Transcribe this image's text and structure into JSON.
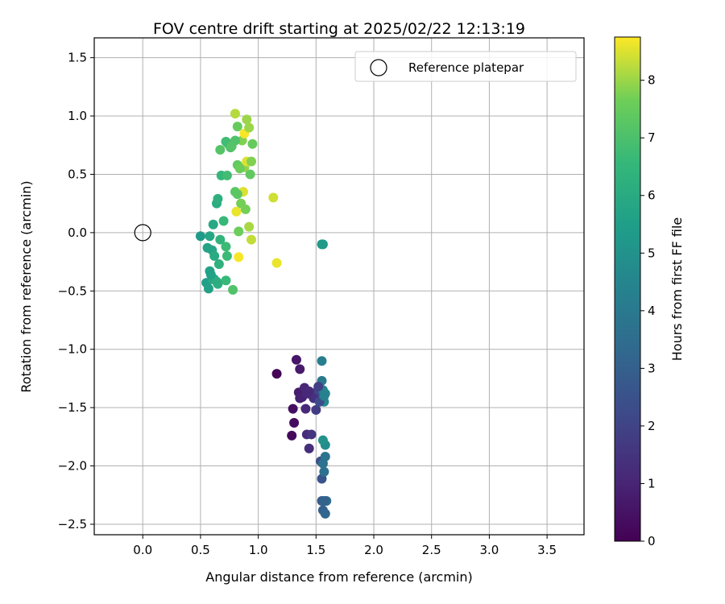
{
  "chart_data": {
    "type": "scatter",
    "title": "FOV centre drift starting at 2025/02/22 12:13:19",
    "xlabel": "Angular distance from reference (arcmin)",
    "ylabel": "Rotation from reference (arcmin)",
    "xlim": [
      -0.42,
      3.82
    ],
    "ylim": [
      -2.59,
      1.67
    ],
    "xticks": [
      "0.0",
      "0.5",
      "1.0",
      "1.5",
      "2.0",
      "2.5",
      "3.0",
      "3.5"
    ],
    "xtick_values": [
      0.0,
      0.5,
      1.0,
      1.5,
      2.0,
      2.5,
      3.0,
      3.5
    ],
    "yticks": [
      "1.5",
      "1.0",
      "0.5",
      "0.0",
      "−0.5",
      "−1.0",
      "−1.5",
      "−2.0",
      "−2.5"
    ],
    "ytick_values": [
      1.5,
      1.0,
      0.5,
      0.0,
      -0.5,
      -1.0,
      -1.5,
      -2.0,
      -2.5
    ],
    "grid": true,
    "legend": {
      "position": "top-right",
      "entries": [
        "Reference platepar"
      ]
    },
    "reference": {
      "x": 0.0,
      "y": 0.0,
      "label": "Reference platepar"
    },
    "colorbar": {
      "label": "Hours from first FF file",
      "colormap": "viridis",
      "range": [
        0,
        8.75
      ],
      "ticks": [
        "0",
        "1",
        "2",
        "3",
        "4",
        "5",
        "6",
        "7",
        "8"
      ],
      "tick_values": [
        0,
        1,
        2,
        3,
        4,
        5,
        6,
        7,
        8
      ]
    },
    "points": [
      {
        "x": 1.16,
        "y": -1.21,
        "h": 0.1
      },
      {
        "x": 1.29,
        "y": -1.74,
        "h": 0.2
      },
      {
        "x": 1.31,
        "y": -1.63,
        "h": 0.3
      },
      {
        "x": 1.3,
        "y": -1.51,
        "h": 0.4
      },
      {
        "x": 1.33,
        "y": -1.09,
        "h": 0.6
      },
      {
        "x": 1.36,
        "y": -1.17,
        "h": 0.7
      },
      {
        "x": 1.35,
        "y": -1.37,
        "h": 0.8
      },
      {
        "x": 1.38,
        "y": -1.41,
        "h": 0.9
      },
      {
        "x": 1.4,
        "y": -1.33,
        "h": 1.0
      },
      {
        "x": 1.41,
        "y": -1.51,
        "h": 1.1
      },
      {
        "x": 1.42,
        "y": -1.73,
        "h": 1.2
      },
      {
        "x": 1.44,
        "y": -1.85,
        "h": 1.3
      },
      {
        "x": 1.46,
        "y": -1.73,
        "h": 1.5
      },
      {
        "x": 1.47,
        "y": -1.4,
        "h": 1.6
      },
      {
        "x": 1.49,
        "y": -1.38,
        "h": 1.7
      },
      {
        "x": 1.5,
        "y": -1.52,
        "h": 1.8
      },
      {
        "x": 1.51,
        "y": -1.36,
        "h": 2.0
      },
      {
        "x": 1.53,
        "y": -1.4,
        "h": 2.2
      },
      {
        "x": 1.54,
        "y": -1.96,
        "h": 2.4
      },
      {
        "x": 1.55,
        "y": -2.11,
        "h": 2.6
      },
      {
        "x": 1.55,
        "y": -2.3,
        "h": 2.8
      },
      {
        "x": 1.56,
        "y": -2.38,
        "h": 3.0
      },
      {
        "x": 1.58,
        "y": -2.41,
        "h": 3.2
      },
      {
        "x": 1.59,
        "y": -2.3,
        "h": 3.4
      },
      {
        "x": 1.57,
        "y": -2.05,
        "h": 3.6
      },
      {
        "x": 1.58,
        "y": -1.92,
        "h": 3.8
      },
      {
        "x": 1.55,
        "y": -1.27,
        "h": 4.0
      },
      {
        "x": 1.55,
        "y": -1.1,
        "h": 4.2
      },
      {
        "x": 1.56,
        "y": -1.35,
        "h": 4.4
      },
      {
        "x": 1.57,
        "y": -1.45,
        "h": 4.6
      },
      {
        "x": 1.58,
        "y": -1.82,
        "h": 4.8
      },
      {
        "x": 1.56,
        "y": -1.78,
        "h": 5.0
      },
      {
        "x": 1.56,
        "y": -0.1,
        "h": 5.2
      },
      {
        "x": 0.5,
        "y": -0.03,
        "h": 5.4
      },
      {
        "x": 0.55,
        "y": -0.43,
        "h": 5.5
      },
      {
        "x": 0.57,
        "y": -0.48,
        "h": 5.6
      },
      {
        "x": 0.58,
        "y": -0.33,
        "h": 5.7
      },
      {
        "x": 0.6,
        "y": -0.15,
        "h": 5.8
      },
      {
        "x": 0.61,
        "y": 0.07,
        "h": 5.9
      },
      {
        "x": 0.62,
        "y": -0.4,
        "h": 6.0
      },
      {
        "x": 0.64,
        "y": 0.25,
        "h": 6.1
      },
      {
        "x": 0.65,
        "y": 0.29,
        "h": 6.2
      },
      {
        "x": 0.66,
        "y": -0.27,
        "h": 6.3
      },
      {
        "x": 0.67,
        "y": -0.06,
        "h": 6.4
      },
      {
        "x": 0.68,
        "y": 0.49,
        "h": 6.5
      },
      {
        "x": 0.7,
        "y": 0.1,
        "h": 6.6
      },
      {
        "x": 0.72,
        "y": -0.12,
        "h": 6.7
      },
      {
        "x": 0.73,
        "y": 0.49,
        "h": 6.8
      },
      {
        "x": 0.74,
        "y": 0.76,
        "h": 6.9
      },
      {
        "x": 0.76,
        "y": 0.73,
        "h": 7.0
      },
      {
        "x": 0.78,
        "y": -0.49,
        "h": 7.1
      },
      {
        "x": 0.67,
        "y": 0.71,
        "h": 7.2
      },
      {
        "x": 0.8,
        "y": 0.35,
        "h": 7.3
      },
      {
        "x": 0.82,
        "y": 0.58,
        "h": 7.4
      },
      {
        "x": 0.82,
        "y": 0.91,
        "h": 7.5
      },
      {
        "x": 0.83,
        "y": 0.01,
        "h": 7.6
      },
      {
        "x": 0.85,
        "y": 0.25,
        "h": 7.7
      },
      {
        "x": 0.86,
        "y": 0.79,
        "h": 7.8
      },
      {
        "x": 0.88,
        "y": 0.56,
        "h": 7.9
      },
      {
        "x": 0.9,
        "y": 0.97,
        "h": 8.0
      },
      {
        "x": 0.92,
        "y": 0.05,
        "h": 8.1
      },
      {
        "x": 0.8,
        "y": 1.02,
        "h": 8.2
      },
      {
        "x": 0.94,
        "y": -0.06,
        "h": 8.3
      },
      {
        "x": 1.13,
        "y": 0.3,
        "h": 8.4
      },
      {
        "x": 0.87,
        "y": 0.35,
        "h": 8.5
      },
      {
        "x": 1.16,
        "y": -0.26,
        "h": 8.6
      },
      {
        "x": 0.83,
        "y": -0.21,
        "h": 8.7
      },
      {
        "x": 0.88,
        "y": 0.85,
        "h": 8.7
      },
      {
        "x": 0.81,
        "y": 0.18,
        "h": 8.6
      },
      {
        "x": 0.9,
        "y": 0.61,
        "h": 8.5
      },
      {
        "x": 0.92,
        "y": 0.9,
        "h": 8.0
      },
      {
        "x": 0.95,
        "y": 0.76,
        "h": 7.5
      },
      {
        "x": 0.94,
        "y": 0.61,
        "h": 7.8
      },
      {
        "x": 0.93,
        "y": 0.5,
        "h": 7.4
      },
      {
        "x": 0.89,
        "y": 0.2,
        "h": 7.7
      },
      {
        "x": 0.8,
        "y": 0.79,
        "h": 7.1
      },
      {
        "x": 0.72,
        "y": 0.78,
        "h": 6.8
      },
      {
        "x": 0.65,
        "y": -0.44,
        "h": 6.2
      },
      {
        "x": 0.6,
        "y": -0.4,
        "h": 5.9
      },
      {
        "x": 0.56,
        "y": -0.13,
        "h": 5.7
      },
      {
        "x": 0.72,
        "y": -0.41,
        "h": 6.6
      },
      {
        "x": 0.73,
        "y": -0.2,
        "h": 6.7
      },
      {
        "x": 0.58,
        "y": -0.03,
        "h": 5.8
      },
      {
        "x": 0.62,
        "y": -0.2,
        "h": 6.0
      },
      {
        "x": 0.64,
        "y": -0.42,
        "h": 6.1
      },
      {
        "x": 0.59,
        "y": -0.36,
        "h": 5.6
      },
      {
        "x": 0.84,
        "y": 0.55,
        "h": 7.6
      },
      {
        "x": 0.77,
        "y": 0.74,
        "h": 7.2
      },
      {
        "x": 0.82,
        "y": 0.33,
        "h": 7.3
      },
      {
        "x": 1.55,
        "y": -0.1,
        "h": 5.3
      },
      {
        "x": 1.48,
        "y": -1.42,
        "h": 1.4
      },
      {
        "x": 1.53,
        "y": -1.45,
        "h": 2.3
      },
      {
        "x": 1.52,
        "y": -1.32,
        "h": 1.9
      },
      {
        "x": 1.36,
        "y": -1.42,
        "h": 0.9
      },
      {
        "x": 1.44,
        "y": -1.36,
        "h": 1.2
      },
      {
        "x": 1.58,
        "y": -1.38,
        "h": 4.5
      },
      {
        "x": 1.56,
        "y": -1.98,
        "h": 3.7
      },
      {
        "x": 1.57,
        "y": -2.3,
        "h": 3.1
      },
      {
        "x": 1.57,
        "y": -1.4,
        "h": 4.3
      },
      {
        "x": 1.42,
        "y": -1.38,
        "h": 1.1
      }
    ]
  }
}
